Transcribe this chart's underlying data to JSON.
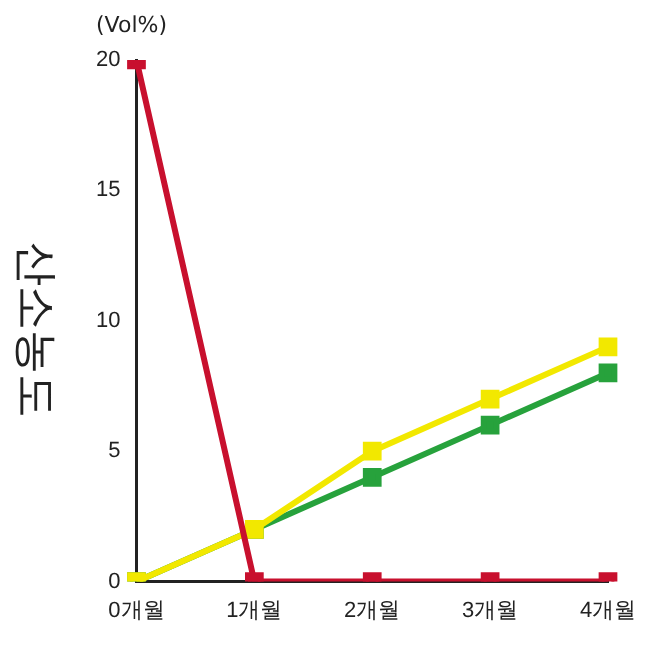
{
  "chart_data": {
    "type": "line",
    "ylabel": "산소농도",
    "annotations": [
      "(Vol%)"
    ],
    "categories": [
      "0개월",
      "1개월",
      "2개월",
      "3개월",
      "4개월"
    ],
    "series": [
      {
        "color": "#c8102e",
        "values": [
          20,
          0,
          0,
          0,
          0
        ]
      },
      {
        "color": "#f2e800",
        "values": [
          0,
          2,
          5,
          7,
          9
        ]
      },
      {
        "color": "#27a23c",
        "values": [
          0,
          2,
          4,
          6,
          8
        ]
      }
    ],
    "ylim": [
      0,
      20
    ],
    "yticks": [
      0,
      5,
      10,
      15,
      20
    ],
    "grid": false,
    "legend": false,
    "marker": "square",
    "line_style": "solid"
  }
}
